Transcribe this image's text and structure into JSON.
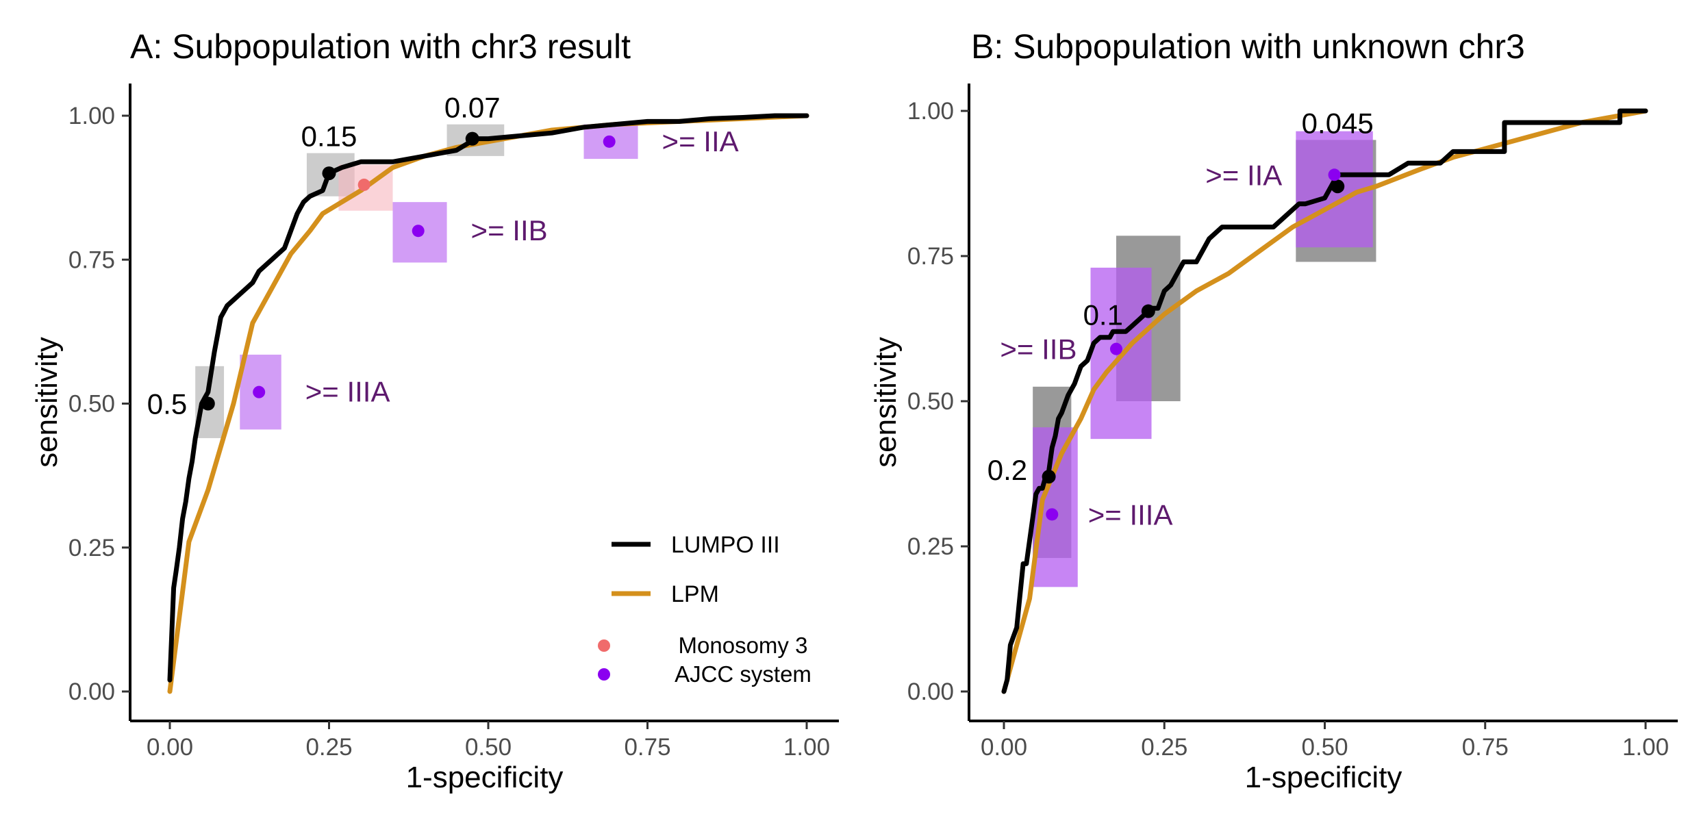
{
  "chart_data": [
    {
      "type": "line",
      "title": "A: Subpopulation with chr3 result",
      "xlabel": "1-specificity",
      "ylabel": "sensitivity",
      "xlim": [
        0,
        1
      ],
      "ylim": [
        0,
        1
      ],
      "xticks": [
        "0.00",
        "0.25",
        "0.50",
        "0.75",
        "1.00"
      ],
      "yticks": [
        "0.00",
        "0.25",
        "0.50",
        "0.75",
        "1.00"
      ],
      "grid": false,
      "legend_position": "bottom-right",
      "legend": {
        "lines": [
          {
            "label": "LUMPO III",
            "color": "#000000"
          },
          {
            "label": "LPM",
            "color": "#D4901C"
          }
        ],
        "points": [
          {
            "label": "Monosomy 3",
            "color": "#F06B6B"
          },
          {
            "label": "AJCC system",
            "color": "#8B00F0"
          }
        ]
      },
      "series": [
        {
          "name": "LUMPO III",
          "color": "#000000",
          "x": [
            0,
            0.003,
            0.006,
            0.01,
            0.015,
            0.02,
            0.025,
            0.03,
            0.035,
            0.04,
            0.045,
            0.05,
            0.055,
            0.06,
            0.07,
            0.075,
            0.08,
            0.085,
            0.09,
            0.1,
            0.11,
            0.12,
            0.13,
            0.14,
            0.15,
            0.16,
            0.17,
            0.18,
            0.19,
            0.2,
            0.205,
            0.21,
            0.22,
            0.24,
            0.25,
            0.27,
            0.3,
            0.35,
            0.4,
            0.45,
            0.48,
            0.5,
            0.55,
            0.6,
            0.65,
            0.7,
            0.75,
            0.8,
            0.85,
            0.9,
            0.95,
            1.0
          ],
          "y": [
            0.02,
            0.1,
            0.18,
            0.21,
            0.25,
            0.3,
            0.33,
            0.37,
            0.4,
            0.44,
            0.47,
            0.5,
            0.51,
            0.52,
            0.59,
            0.62,
            0.65,
            0.66,
            0.67,
            0.68,
            0.69,
            0.7,
            0.71,
            0.73,
            0.74,
            0.75,
            0.76,
            0.77,
            0.8,
            0.83,
            0.84,
            0.85,
            0.86,
            0.87,
            0.9,
            0.91,
            0.92,
            0.92,
            0.93,
            0.94,
            0.96,
            0.96,
            0.965,
            0.97,
            0.98,
            0.985,
            0.99,
            0.99,
            0.995,
            0.997,
            1.0,
            1.0
          ]
        },
        {
          "name": "LPM",
          "color": "#D4901C",
          "x": [
            0,
            0.03,
            0.06,
            0.1,
            0.13,
            0.16,
            0.19,
            0.22,
            0.24,
            0.27,
            0.3,
            0.35,
            0.4,
            0.45,
            0.5,
            0.55,
            0.6,
            0.65,
            0.7,
            0.8,
            0.9,
            1.0
          ],
          "y": [
            0.0,
            0.26,
            0.35,
            0.5,
            0.64,
            0.7,
            0.76,
            0.8,
            0.83,
            0.85,
            0.87,
            0.91,
            0.93,
            0.945,
            0.955,
            0.965,
            0.975,
            0.98,
            0.985,
            0.99,
            0.995,
            1.0
          ]
        }
      ],
      "threshold_points": [
        {
          "label": "0.5",
          "x": 0.06,
          "y": 0.5,
          "xmin": 0.04,
          "xmax": 0.085,
          "ymin": 0.44,
          "ymax": 0.565
        },
        {
          "label": "0.15",
          "x": 0.25,
          "y": 0.9,
          "xmin": 0.215,
          "xmax": 0.29,
          "ymin": 0.86,
          "ymax": 0.935
        },
        {
          "label": "0.07",
          "x": 0.475,
          "y": 0.96,
          "xmin": 0.435,
          "xmax": 0.525,
          "ymin": 0.93,
          "ymax": 0.985
        }
      ],
      "monosomy3_points": [
        {
          "x": 0.305,
          "y": 0.88,
          "xmin": 0.265,
          "xmax": 0.35,
          "ymin": 0.835,
          "ymax": 0.915
        }
      ],
      "ajcc_points": [
        {
          "label": ">= IIIA",
          "x": 0.14,
          "y": 0.52,
          "xmin": 0.11,
          "xmax": 0.175,
          "ymin": 0.455,
          "ymax": 0.585
        },
        {
          "label": ">= IIB",
          "x": 0.39,
          "y": 0.8,
          "xmin": 0.35,
          "xmax": 0.435,
          "ymin": 0.745,
          "ymax": 0.85
        },
        {
          "label": ">= IIA",
          "x": 0.69,
          "y": 0.955,
          "xmin": 0.65,
          "xmax": 0.735,
          "ymin": 0.925,
          "ymax": 0.985
        }
      ]
    },
    {
      "type": "line",
      "title": "B: Subpopulation with unknown chr3",
      "xlabel": "1-specificity",
      "ylabel": "sensitivity",
      "xlim": [
        0,
        1
      ],
      "ylim": [
        0,
        1
      ],
      "xticks": [
        "0.00",
        "0.25",
        "0.50",
        "0.75",
        "1.00"
      ],
      "yticks": [
        "0.00",
        "0.25",
        "0.50",
        "0.75",
        "1.00"
      ],
      "grid": false,
      "series": [
        {
          "name": "LUMPO III",
          "color": "#000000",
          "x": [
            0,
            0.005,
            0.01,
            0.02,
            0.03,
            0.035,
            0.045,
            0.05,
            0.055,
            0.06,
            0.065,
            0.07,
            0.075,
            0.08,
            0.085,
            0.09,
            0.1,
            0.11,
            0.12,
            0.13,
            0.14,
            0.15,
            0.16,
            0.165,
            0.17,
            0.19,
            0.2,
            0.21,
            0.22,
            0.23,
            0.24,
            0.25,
            0.26,
            0.27,
            0.28,
            0.3,
            0.31,
            0.32,
            0.34,
            0.36,
            0.42,
            0.44,
            0.46,
            0.47,
            0.5,
            0.51,
            0.52,
            0.52,
            0.6,
            0.63,
            0.68,
            0.7,
            0.78,
            0.78,
            0.96,
            0.96,
            1.0
          ],
          "y": [
            0.0,
            0.02,
            0.08,
            0.11,
            0.22,
            0.22,
            0.3,
            0.34,
            0.35,
            0.35,
            0.37,
            0.38,
            0.42,
            0.44,
            0.47,
            0.48,
            0.51,
            0.53,
            0.56,
            0.57,
            0.6,
            0.61,
            0.61,
            0.61,
            0.62,
            0.62,
            0.63,
            0.64,
            0.65,
            0.66,
            0.66,
            0.69,
            0.7,
            0.72,
            0.74,
            0.74,
            0.76,
            0.78,
            0.8,
            0.8,
            0.8,
            0.82,
            0.84,
            0.84,
            0.85,
            0.87,
            0.89,
            0.89,
            0.89,
            0.91,
            0.91,
            0.93,
            0.93,
            0.98,
            0.98,
            1.0,
            1.0
          ]
        },
        {
          "name": "LPM",
          "color": "#D4901C",
          "x": [
            0,
            0.02,
            0.04,
            0.06,
            0.09,
            0.12,
            0.14,
            0.16,
            0.2,
            0.25,
            0.3,
            0.35,
            0.4,
            0.45,
            0.5,
            0.55,
            0.58,
            0.65,
            0.7,
            0.8,
            0.9,
            1.0
          ],
          "y": [
            0.0,
            0.08,
            0.16,
            0.33,
            0.41,
            0.47,
            0.52,
            0.55,
            0.6,
            0.65,
            0.69,
            0.72,
            0.76,
            0.8,
            0.83,
            0.86,
            0.87,
            0.9,
            0.92,
            0.95,
            0.98,
            1.0
          ]
        }
      ],
      "threshold_points": [
        {
          "label": "0.2",
          "x": 0.07,
          "y": 0.37,
          "xmin": 0.045,
          "xmax": 0.105,
          "ymin": 0.23,
          "ymax": 0.525
        },
        {
          "label": "0.1",
          "x": 0.225,
          "y": 0.655,
          "xmin": 0.175,
          "xmax": 0.275,
          "ymin": 0.5,
          "ymax": 0.785
        },
        {
          "label": "0.045",
          "x": 0.52,
          "y": 0.87,
          "xmin": 0.455,
          "xmax": 0.58,
          "ymin": 0.74,
          "ymax": 0.95
        }
      ],
      "ajcc_points": [
        {
          "label": ">= IIIA",
          "x": 0.075,
          "y": 0.305,
          "xmin": 0.045,
          "xmax": 0.115,
          "ymin": 0.18,
          "ymax": 0.455
        },
        {
          "label": ">= IIB",
          "x": 0.175,
          "y": 0.59,
          "xmin": 0.135,
          "xmax": 0.23,
          "ymin": 0.435,
          "ymax": 0.73
        },
        {
          "label": ">= IIA",
          "x": 0.515,
          "y": 0.89,
          "xmin": 0.455,
          "xmax": 0.575,
          "ymin": 0.765,
          "ymax": 0.965
        }
      ]
    }
  ],
  "colors": {
    "lumpo": "#000000",
    "lpm": "#D4901C",
    "monosomy3_point": "#F06B6B",
    "monosomy3_box": "#F7B6BE",
    "ajcc_point": "#8B00F0",
    "ajcc_box": "#B45CF0",
    "ajcc_text": "#5E1A6E",
    "threshold_box": "#808080"
  }
}
